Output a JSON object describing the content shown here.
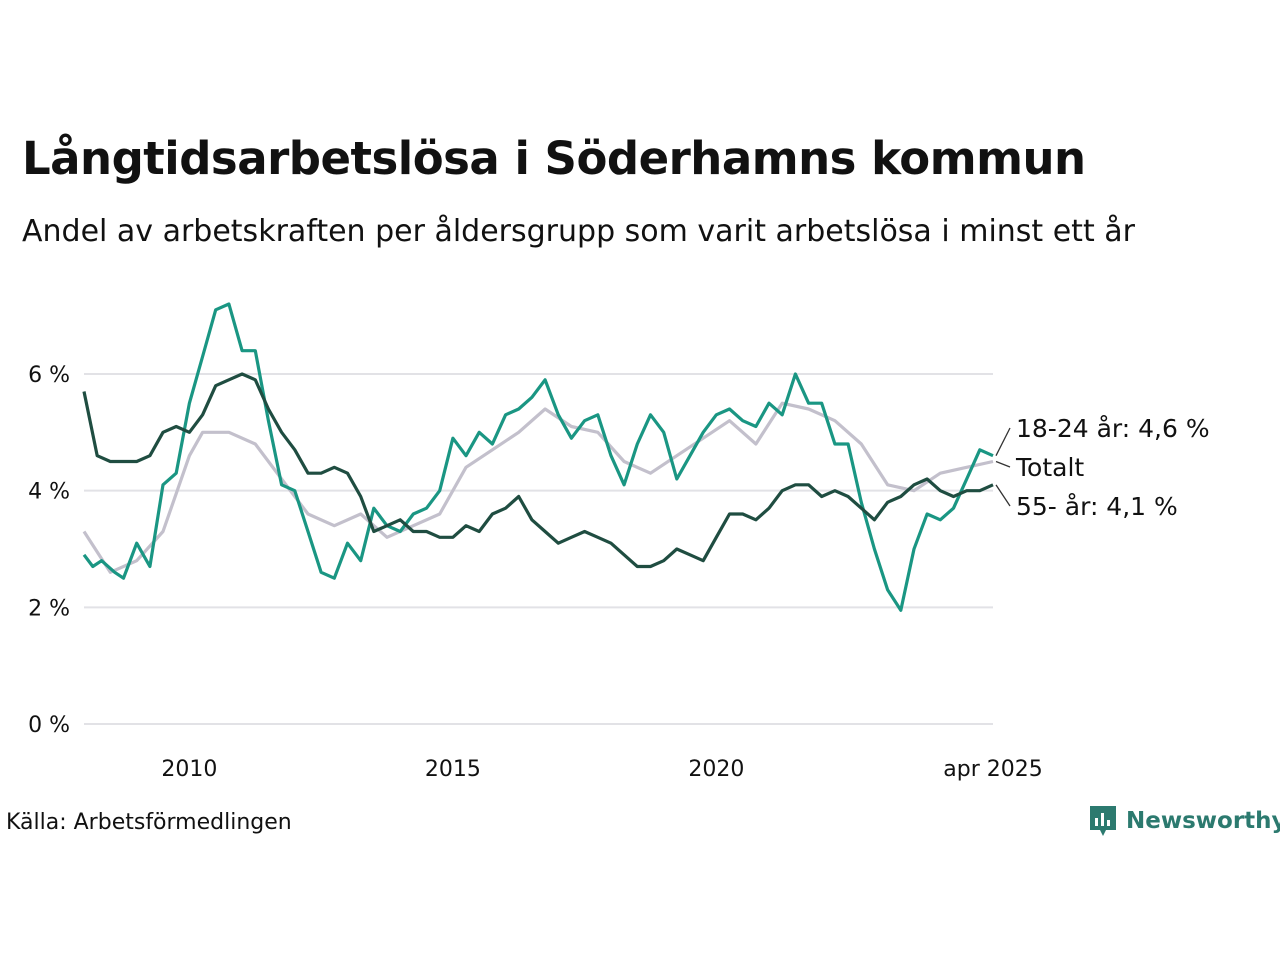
{
  "title": "Långtidsarbetslösa i Söderhamns kommun",
  "subtitle": "Andel av arbetskraften per åldersgrupp som varit arbetslösa i minst ett år",
  "source": "Källa: Arbetsförmedlingen",
  "brand": {
    "name": "Newsworthy",
    "color": "#2c7a6f",
    "icon": "newsworthy-chart-icon"
  },
  "chart_data": {
    "type": "line",
    "y_ticks": [
      "0 %",
      "2 %",
      "4 %",
      "6 %"
    ],
    "x_ticks": [
      "2010",
      "2015",
      "2020",
      "apr 2025"
    ],
    "ylim": [
      0,
      7.5
    ],
    "xlim": [
      "2008-01",
      "2025-04"
    ],
    "grid": true,
    "legend": "end-of-line labels, right",
    "series": [
      {
        "name": "Totalt",
        "end_label": "Totalt",
        "color": "#c3c0cc",
        "points": [
          [
            "2008-01",
            3.3
          ],
          [
            "2008-07",
            2.6
          ],
          [
            "2009-01",
            2.8
          ],
          [
            "2009-07",
            3.3
          ],
          [
            "2010-01",
            4.6
          ],
          [
            "2010-04",
            5.0
          ],
          [
            "2010-10",
            5.0
          ],
          [
            "2011-04",
            4.8
          ],
          [
            "2011-10",
            4.2
          ],
          [
            "2012-04",
            3.6
          ],
          [
            "2012-10",
            3.4
          ],
          [
            "2013-04",
            3.6
          ],
          [
            "2013-10",
            3.2
          ],
          [
            "2014-04",
            3.4
          ],
          [
            "2014-10",
            3.6
          ],
          [
            "2015-04",
            4.4
          ],
          [
            "2015-10",
            4.7
          ],
          [
            "2016-04",
            5.0
          ],
          [
            "2016-10",
            5.4
          ],
          [
            "2017-04",
            5.1
          ],
          [
            "2017-10",
            5.0
          ],
          [
            "2018-04",
            4.5
          ],
          [
            "2018-10",
            4.3
          ],
          [
            "2019-04",
            4.6
          ],
          [
            "2019-10",
            4.9
          ],
          [
            "2020-04",
            5.2
          ],
          [
            "2020-10",
            4.8
          ],
          [
            "2021-04",
            5.5
          ],
          [
            "2021-10",
            5.4
          ],
          [
            "2022-04",
            5.2
          ],
          [
            "2022-10",
            4.8
          ],
          [
            "2023-04",
            4.1
          ],
          [
            "2023-10",
            4.0
          ],
          [
            "2024-04",
            4.3
          ],
          [
            "2024-10",
            4.4
          ],
          [
            "2025-04",
            4.5
          ]
        ]
      },
      {
        "name": "18-24 år",
        "end_label": "18-24 år: 4,6 %",
        "color": "#1a9683",
        "points": [
          [
            "2008-01",
            2.9
          ],
          [
            "2008-03",
            2.7
          ],
          [
            "2008-05",
            2.8
          ],
          [
            "2008-08",
            2.6
          ],
          [
            "2008-10",
            2.5
          ],
          [
            "2009-01",
            3.1
          ],
          [
            "2009-04",
            2.7
          ],
          [
            "2009-07",
            4.1
          ],
          [
            "2009-10",
            4.3
          ],
          [
            "2010-01",
            5.5
          ],
          [
            "2010-04",
            6.3
          ],
          [
            "2010-07",
            7.1
          ],
          [
            "2010-10",
            7.2
          ],
          [
            "2011-01",
            6.4
          ],
          [
            "2011-04",
            6.4
          ],
          [
            "2011-07",
            5.2
          ],
          [
            "2011-10",
            4.1
          ],
          [
            "2012-01",
            4.0
          ],
          [
            "2012-04",
            3.3
          ],
          [
            "2012-07",
            2.6
          ],
          [
            "2012-10",
            2.5
          ],
          [
            "2013-01",
            3.1
          ],
          [
            "2013-04",
            2.8
          ],
          [
            "2013-07",
            3.7
          ],
          [
            "2013-10",
            3.4
          ],
          [
            "2014-01",
            3.3
          ],
          [
            "2014-04",
            3.6
          ],
          [
            "2014-07",
            3.7
          ],
          [
            "2014-10",
            4.0
          ],
          [
            "2015-01",
            4.9
          ],
          [
            "2015-04",
            4.6
          ],
          [
            "2015-07",
            5.0
          ],
          [
            "2015-10",
            4.8
          ],
          [
            "2016-01",
            5.3
          ],
          [
            "2016-04",
            5.4
          ],
          [
            "2016-07",
            5.6
          ],
          [
            "2016-10",
            5.9
          ],
          [
            "2017-01",
            5.3
          ],
          [
            "2017-04",
            4.9
          ],
          [
            "2017-07",
            5.2
          ],
          [
            "2017-10",
            5.3
          ],
          [
            "2018-01",
            4.6
          ],
          [
            "2018-04",
            4.1
          ],
          [
            "2018-07",
            4.8
          ],
          [
            "2018-10",
            5.3
          ],
          [
            "2019-01",
            5.0
          ],
          [
            "2019-04",
            4.2
          ],
          [
            "2019-07",
            4.6
          ],
          [
            "2019-10",
            5.0
          ],
          [
            "2020-01",
            5.3
          ],
          [
            "2020-04",
            5.4
          ],
          [
            "2020-07",
            5.2
          ],
          [
            "2020-10",
            5.1
          ],
          [
            "2021-01",
            5.5
          ],
          [
            "2021-04",
            5.3
          ],
          [
            "2021-07",
            6.0
          ],
          [
            "2021-10",
            5.5
          ],
          [
            "2022-01",
            5.5
          ],
          [
            "2022-04",
            4.8
          ],
          [
            "2022-07",
            4.8
          ],
          [
            "2022-10",
            3.8
          ],
          [
            "2023-01",
            3.0
          ],
          [
            "2023-04",
            2.3
          ],
          [
            "2023-07",
            1.95
          ],
          [
            "2023-10",
            3.0
          ],
          [
            "2024-01",
            3.6
          ],
          [
            "2024-04",
            3.5
          ],
          [
            "2024-07",
            3.7
          ],
          [
            "2024-10",
            4.2
          ],
          [
            "2025-01",
            4.7
          ],
          [
            "2025-04",
            4.6
          ]
        ]
      },
      {
        "name": "55- år",
        "end_label": "55- år: 4,1 %",
        "color": "#1f4d41",
        "points": [
          [
            "2008-01",
            5.7
          ],
          [
            "2008-04",
            4.6
          ],
          [
            "2008-07",
            4.5
          ],
          [
            "2008-10",
            4.5
          ],
          [
            "2009-01",
            4.5
          ],
          [
            "2009-04",
            4.6
          ],
          [
            "2009-07",
            5.0
          ],
          [
            "2009-10",
            5.1
          ],
          [
            "2010-01",
            5.0
          ],
          [
            "2010-04",
            5.3
          ],
          [
            "2010-07",
            5.8
          ],
          [
            "2010-10",
            5.9
          ],
          [
            "2011-01",
            6.0
          ],
          [
            "2011-04",
            5.9
          ],
          [
            "2011-07",
            5.4
          ],
          [
            "2011-10",
            5.0
          ],
          [
            "2012-01",
            4.7
          ],
          [
            "2012-04",
            4.3
          ],
          [
            "2012-07",
            4.3
          ],
          [
            "2012-10",
            4.4
          ],
          [
            "2013-01",
            4.3
          ],
          [
            "2013-04",
            3.9
          ],
          [
            "2013-07",
            3.3
          ],
          [
            "2013-10",
            3.4
          ],
          [
            "2014-01",
            3.5
          ],
          [
            "2014-04",
            3.3
          ],
          [
            "2014-07",
            3.3
          ],
          [
            "2014-10",
            3.2
          ],
          [
            "2015-01",
            3.2
          ],
          [
            "2015-04",
            3.4
          ],
          [
            "2015-07",
            3.3
          ],
          [
            "2015-10",
            3.6
          ],
          [
            "2016-01",
            3.7
          ],
          [
            "2016-04",
            3.9
          ],
          [
            "2016-07",
            3.5
          ],
          [
            "2016-10",
            3.3
          ],
          [
            "2017-01",
            3.1
          ],
          [
            "2017-04",
            3.2
          ],
          [
            "2017-07",
            3.3
          ],
          [
            "2017-10",
            3.2
          ],
          [
            "2018-01",
            3.1
          ],
          [
            "2018-04",
            2.9
          ],
          [
            "2018-07",
            2.7
          ],
          [
            "2018-10",
            2.7
          ],
          [
            "2019-01",
            2.8
          ],
          [
            "2019-04",
            3.0
          ],
          [
            "2019-07",
            2.9
          ],
          [
            "2019-10",
            2.8
          ],
          [
            "2020-01",
            3.2
          ],
          [
            "2020-04",
            3.6
          ],
          [
            "2020-07",
            3.6
          ],
          [
            "2020-10",
            3.5
          ],
          [
            "2021-01",
            3.7
          ],
          [
            "2021-04",
            4.0
          ],
          [
            "2021-07",
            4.1
          ],
          [
            "2021-10",
            4.1
          ],
          [
            "2022-01",
            3.9
          ],
          [
            "2022-04",
            4.0
          ],
          [
            "2022-07",
            3.9
          ],
          [
            "2022-10",
            3.7
          ],
          [
            "2023-01",
            3.5
          ],
          [
            "2023-04",
            3.8
          ],
          [
            "2023-07",
            3.9
          ],
          [
            "2023-10",
            4.1
          ],
          [
            "2024-01",
            4.2
          ],
          [
            "2024-04",
            4.0
          ],
          [
            "2024-07",
            3.9
          ],
          [
            "2024-10",
            4.0
          ],
          [
            "2025-01",
            4.0
          ],
          [
            "2025-04",
            4.1
          ]
        ]
      }
    ]
  }
}
